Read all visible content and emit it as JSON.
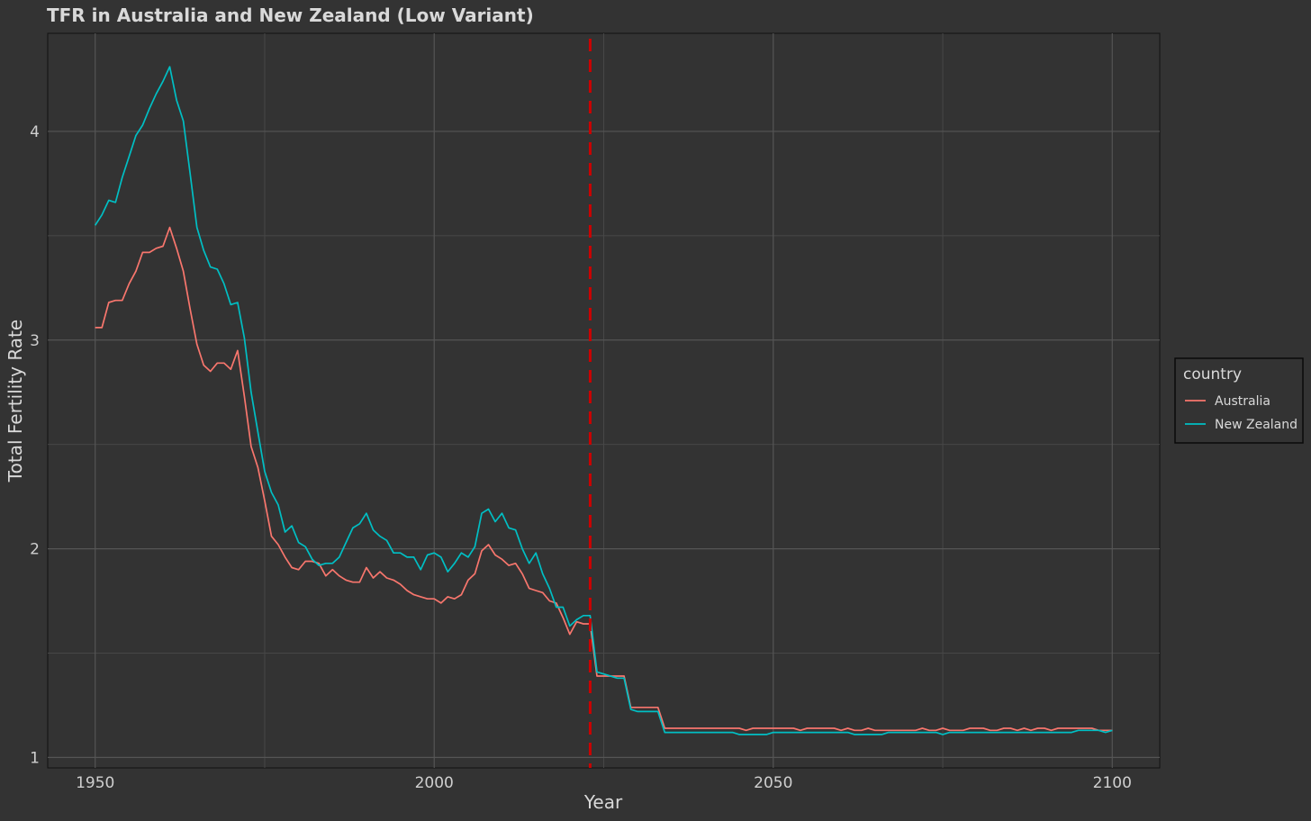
{
  "chart_data": {
    "type": "line",
    "title": "TFR in Australia and New Zealand (Low Variant)",
    "xlabel": "Year",
    "ylabel": "Total Fertility Rate",
    "xlim": [
      1943,
      2107
    ],
    "ylim": [
      0.95,
      4.47
    ],
    "x_ticks": [
      1950,
      2000,
      2050,
      2100
    ],
    "y_ticks": [
      1,
      2,
      3,
      4
    ],
    "grid": true,
    "legend": {
      "title": "country",
      "position": "right"
    },
    "reference_line": {
      "x": 2023,
      "color": "#cc0000",
      "style": "dashed"
    },
    "series": [
      {
        "name": "Australia",
        "color": "#f8766d",
        "points": [
          [
            1950,
            3.06
          ],
          [
            1951,
            3.06
          ],
          [
            1952,
            3.18
          ],
          [
            1953,
            3.19
          ],
          [
            1954,
            3.19
          ],
          [
            1955,
            3.27
          ],
          [
            1956,
            3.33
          ],
          [
            1957,
            3.42
          ],
          [
            1958,
            3.42
          ],
          [
            1959,
            3.44
          ],
          [
            1960,
            3.45
          ],
          [
            1961,
            3.54
          ],
          [
            1962,
            3.44
          ],
          [
            1963,
            3.33
          ],
          [
            1964,
            3.15
          ],
          [
            1965,
            2.98
          ],
          [
            1966,
            2.88
          ],
          [
            1967,
            2.85
          ],
          [
            1968,
            2.89
          ],
          [
            1969,
            2.89
          ],
          [
            1970,
            2.86
          ],
          [
            1971,
            2.95
          ],
          [
            1972,
            2.73
          ],
          [
            1973,
            2.49
          ],
          [
            1974,
            2.39
          ],
          [
            1975,
            2.23
          ],
          [
            1976,
            2.06
          ],
          [
            1977,
            2.02
          ],
          [
            1978,
            1.96
          ],
          [
            1979,
            1.91
          ],
          [
            1980,
            1.9
          ],
          [
            1981,
            1.94
          ],
          [
            1982,
            1.94
          ],
          [
            1983,
            1.93
          ],
          [
            1984,
            1.87
          ],
          [
            1985,
            1.9
          ],
          [
            1986,
            1.87
          ],
          [
            1987,
            1.85
          ],
          [
            1988,
            1.84
          ],
          [
            1989,
            1.84
          ],
          [
            1990,
            1.91
          ],
          [
            1991,
            1.86
          ],
          [
            1992,
            1.89
          ],
          [
            1993,
            1.86
          ],
          [
            1994,
            1.85
          ],
          [
            1995,
            1.83
          ],
          [
            1996,
            1.8
          ],
          [
            1997,
            1.78
          ],
          [
            1998,
            1.77
          ],
          [
            1999,
            1.76
          ],
          [
            2000,
            1.76
          ],
          [
            2001,
            1.74
          ],
          [
            2002,
            1.77
          ],
          [
            2003,
            1.76
          ],
          [
            2004,
            1.78
          ],
          [
            2005,
            1.85
          ],
          [
            2006,
            1.88
          ],
          [
            2007,
            1.99
          ],
          [
            2008,
            2.02
          ],
          [
            2009,
            1.97
          ],
          [
            2010,
            1.95
          ],
          [
            2011,
            1.92
          ],
          [
            2012,
            1.93
          ],
          [
            2013,
            1.88
          ],
          [
            2014,
            1.81
          ],
          [
            2015,
            1.8
          ],
          [
            2016,
            1.79
          ],
          [
            2017,
            1.75
          ],
          [
            2018,
            1.74
          ],
          [
            2019,
            1.67
          ],
          [
            2020,
            1.59
          ],
          [
            2021,
            1.65
          ],
          [
            2022,
            1.64
          ],
          [
            2023,
            1.64
          ],
          [
            2024,
            1.39
          ],
          [
            2025,
            1.39
          ],
          [
            2026,
            1.39
          ],
          [
            2027,
            1.39
          ],
          [
            2028,
            1.39
          ],
          [
            2029,
            1.24
          ],
          [
            2030,
            1.24
          ],
          [
            2031,
            1.24
          ],
          [
            2032,
            1.24
          ],
          [
            2033,
            1.24
          ],
          [
            2034,
            1.14
          ],
          [
            2035,
            1.14
          ],
          [
            2036,
            1.14
          ],
          [
            2037,
            1.14
          ],
          [
            2038,
            1.14
          ],
          [
            2039,
            1.14
          ],
          [
            2040,
            1.14
          ],
          [
            2041,
            1.14
          ],
          [
            2042,
            1.14
          ],
          [
            2043,
            1.14
          ],
          [
            2044,
            1.14
          ],
          [
            2045,
            1.14
          ],
          [
            2046,
            1.13
          ],
          [
            2047,
            1.14
          ],
          [
            2048,
            1.14
          ],
          [
            2049,
            1.14
          ],
          [
            2050,
            1.14
          ],
          [
            2051,
            1.14
          ],
          [
            2052,
            1.14
          ],
          [
            2053,
            1.14
          ],
          [
            2054,
            1.13
          ],
          [
            2055,
            1.14
          ],
          [
            2056,
            1.14
          ],
          [
            2057,
            1.14
          ],
          [
            2058,
            1.14
          ],
          [
            2059,
            1.14
          ],
          [
            2060,
            1.13
          ],
          [
            2061,
            1.14
          ],
          [
            2062,
            1.13
          ],
          [
            2063,
            1.13
          ],
          [
            2064,
            1.14
          ],
          [
            2065,
            1.13
          ],
          [
            2066,
            1.13
          ],
          [
            2067,
            1.13
          ],
          [
            2068,
            1.13
          ],
          [
            2069,
            1.13
          ],
          [
            2070,
            1.13
          ],
          [
            2071,
            1.13
          ],
          [
            2072,
            1.14
          ],
          [
            2073,
            1.13
          ],
          [
            2074,
            1.13
          ],
          [
            2075,
            1.14
          ],
          [
            2076,
            1.13
          ],
          [
            2077,
            1.13
          ],
          [
            2078,
            1.13
          ],
          [
            2079,
            1.14
          ],
          [
            2080,
            1.14
          ],
          [
            2081,
            1.14
          ],
          [
            2082,
            1.13
          ],
          [
            2083,
            1.13
          ],
          [
            2084,
            1.14
          ],
          [
            2085,
            1.14
          ],
          [
            2086,
            1.13
          ],
          [
            2087,
            1.14
          ],
          [
            2088,
            1.13
          ],
          [
            2089,
            1.14
          ],
          [
            2090,
            1.14
          ],
          [
            2091,
            1.13
          ],
          [
            2092,
            1.14
          ],
          [
            2093,
            1.14
          ],
          [
            2094,
            1.14
          ],
          [
            2095,
            1.14
          ],
          [
            2096,
            1.14
          ],
          [
            2097,
            1.14
          ],
          [
            2098,
            1.13
          ],
          [
            2099,
            1.13
          ],
          [
            2100,
            1.13
          ]
        ]
      },
      {
        "name": "New Zealand",
        "color": "#00bfc4",
        "points": [
          [
            1950,
            3.55
          ],
          [
            1951,
            3.6
          ],
          [
            1952,
            3.67
          ],
          [
            1953,
            3.66
          ],
          [
            1954,
            3.78
          ],
          [
            1955,
            3.88
          ],
          [
            1956,
            3.98
          ],
          [
            1957,
            4.03
          ],
          [
            1958,
            4.11
          ],
          [
            1959,
            4.18
          ],
          [
            1960,
            4.24
          ],
          [
            1961,
            4.31
          ],
          [
            1962,
            4.15
          ],
          [
            1963,
            4.05
          ],
          [
            1964,
            3.8
          ],
          [
            1965,
            3.54
          ],
          [
            1966,
            3.43
          ],
          [
            1967,
            3.35
          ],
          [
            1968,
            3.34
          ],
          [
            1969,
            3.27
          ],
          [
            1970,
            3.17
          ],
          [
            1971,
            3.18
          ],
          [
            1972,
            3.01
          ],
          [
            1973,
            2.75
          ],
          [
            1974,
            2.56
          ],
          [
            1975,
            2.37
          ],
          [
            1976,
            2.27
          ],
          [
            1977,
            2.21
          ],
          [
            1978,
            2.08
          ],
          [
            1979,
            2.11
          ],
          [
            1980,
            2.03
          ],
          [
            1981,
            2.01
          ],
          [
            1982,
            1.95
          ],
          [
            1983,
            1.92
          ],
          [
            1984,
            1.93
          ],
          [
            1985,
            1.93
          ],
          [
            1986,
            1.96
          ],
          [
            1987,
            2.03
          ],
          [
            1988,
            2.1
          ],
          [
            1989,
            2.12
          ],
          [
            1990,
            2.17
          ],
          [
            1991,
            2.09
          ],
          [
            1992,
            2.06
          ],
          [
            1993,
            2.04
          ],
          [
            1994,
            1.98
          ],
          [
            1995,
            1.98
          ],
          [
            1996,
            1.96
          ],
          [
            1997,
            1.96
          ],
          [
            1998,
            1.9
          ],
          [
            1999,
            1.97
          ],
          [
            2000,
            1.98
          ],
          [
            2001,
            1.96
          ],
          [
            2002,
            1.89
          ],
          [
            2003,
            1.93
          ],
          [
            2004,
            1.98
          ],
          [
            2005,
            1.96
          ],
          [
            2006,
            2.01
          ],
          [
            2007,
            2.17
          ],
          [
            2008,
            2.19
          ],
          [
            2009,
            2.13
          ],
          [
            2010,
            2.17
          ],
          [
            2011,
            2.1
          ],
          [
            2012,
            2.09
          ],
          [
            2013,
            2.0
          ],
          [
            2014,
            1.93
          ],
          [
            2015,
            1.98
          ],
          [
            2016,
            1.88
          ],
          [
            2017,
            1.81
          ],
          [
            2018,
            1.72
          ],
          [
            2019,
            1.72
          ],
          [
            2020,
            1.63
          ],
          [
            2021,
            1.66
          ],
          [
            2022,
            1.68
          ],
          [
            2023,
            1.68
          ],
          [
            2024,
            1.41
          ],
          [
            2025,
            1.4
          ],
          [
            2026,
            1.39
          ],
          [
            2027,
            1.38
          ],
          [
            2028,
            1.38
          ],
          [
            2029,
            1.23
          ],
          [
            2030,
            1.22
          ],
          [
            2031,
            1.22
          ],
          [
            2032,
            1.22
          ],
          [
            2033,
            1.22
          ],
          [
            2034,
            1.12
          ],
          [
            2035,
            1.12
          ],
          [
            2036,
            1.12
          ],
          [
            2037,
            1.12
          ],
          [
            2038,
            1.12
          ],
          [
            2039,
            1.12
          ],
          [
            2040,
            1.12
          ],
          [
            2041,
            1.12
          ],
          [
            2042,
            1.12
          ],
          [
            2043,
            1.12
          ],
          [
            2044,
            1.12
          ],
          [
            2045,
            1.11
          ],
          [
            2046,
            1.11
          ],
          [
            2047,
            1.11
          ],
          [
            2048,
            1.11
          ],
          [
            2049,
            1.11
          ],
          [
            2050,
            1.12
          ],
          [
            2051,
            1.12
          ],
          [
            2052,
            1.12
          ],
          [
            2053,
            1.12
          ],
          [
            2054,
            1.12
          ],
          [
            2055,
            1.12
          ],
          [
            2056,
            1.12
          ],
          [
            2057,
            1.12
          ],
          [
            2058,
            1.12
          ],
          [
            2059,
            1.12
          ],
          [
            2060,
            1.12
          ],
          [
            2061,
            1.12
          ],
          [
            2062,
            1.11
          ],
          [
            2063,
            1.11
          ],
          [
            2064,
            1.11
          ],
          [
            2065,
            1.11
          ],
          [
            2066,
            1.11
          ],
          [
            2067,
            1.12
          ],
          [
            2068,
            1.12
          ],
          [
            2069,
            1.12
          ],
          [
            2070,
            1.12
          ],
          [
            2071,
            1.12
          ],
          [
            2072,
            1.12
          ],
          [
            2073,
            1.12
          ],
          [
            2074,
            1.12
          ],
          [
            2075,
            1.11
          ],
          [
            2076,
            1.12
          ],
          [
            2077,
            1.12
          ],
          [
            2078,
            1.12
          ],
          [
            2079,
            1.12
          ],
          [
            2080,
            1.12
          ],
          [
            2081,
            1.12
          ],
          [
            2082,
            1.12
          ],
          [
            2083,
            1.12
          ],
          [
            2084,
            1.12
          ],
          [
            2085,
            1.12
          ],
          [
            2086,
            1.12
          ],
          [
            2087,
            1.12
          ],
          [
            2088,
            1.12
          ],
          [
            2089,
            1.12
          ],
          [
            2090,
            1.12
          ],
          [
            2091,
            1.12
          ],
          [
            2092,
            1.12
          ],
          [
            2093,
            1.12
          ],
          [
            2094,
            1.12
          ],
          [
            2095,
            1.13
          ],
          [
            2096,
            1.13
          ],
          [
            2097,
            1.13
          ],
          [
            2098,
            1.13
          ],
          [
            2099,
            1.12
          ],
          [
            2100,
            1.13
          ]
        ]
      }
    ]
  }
}
